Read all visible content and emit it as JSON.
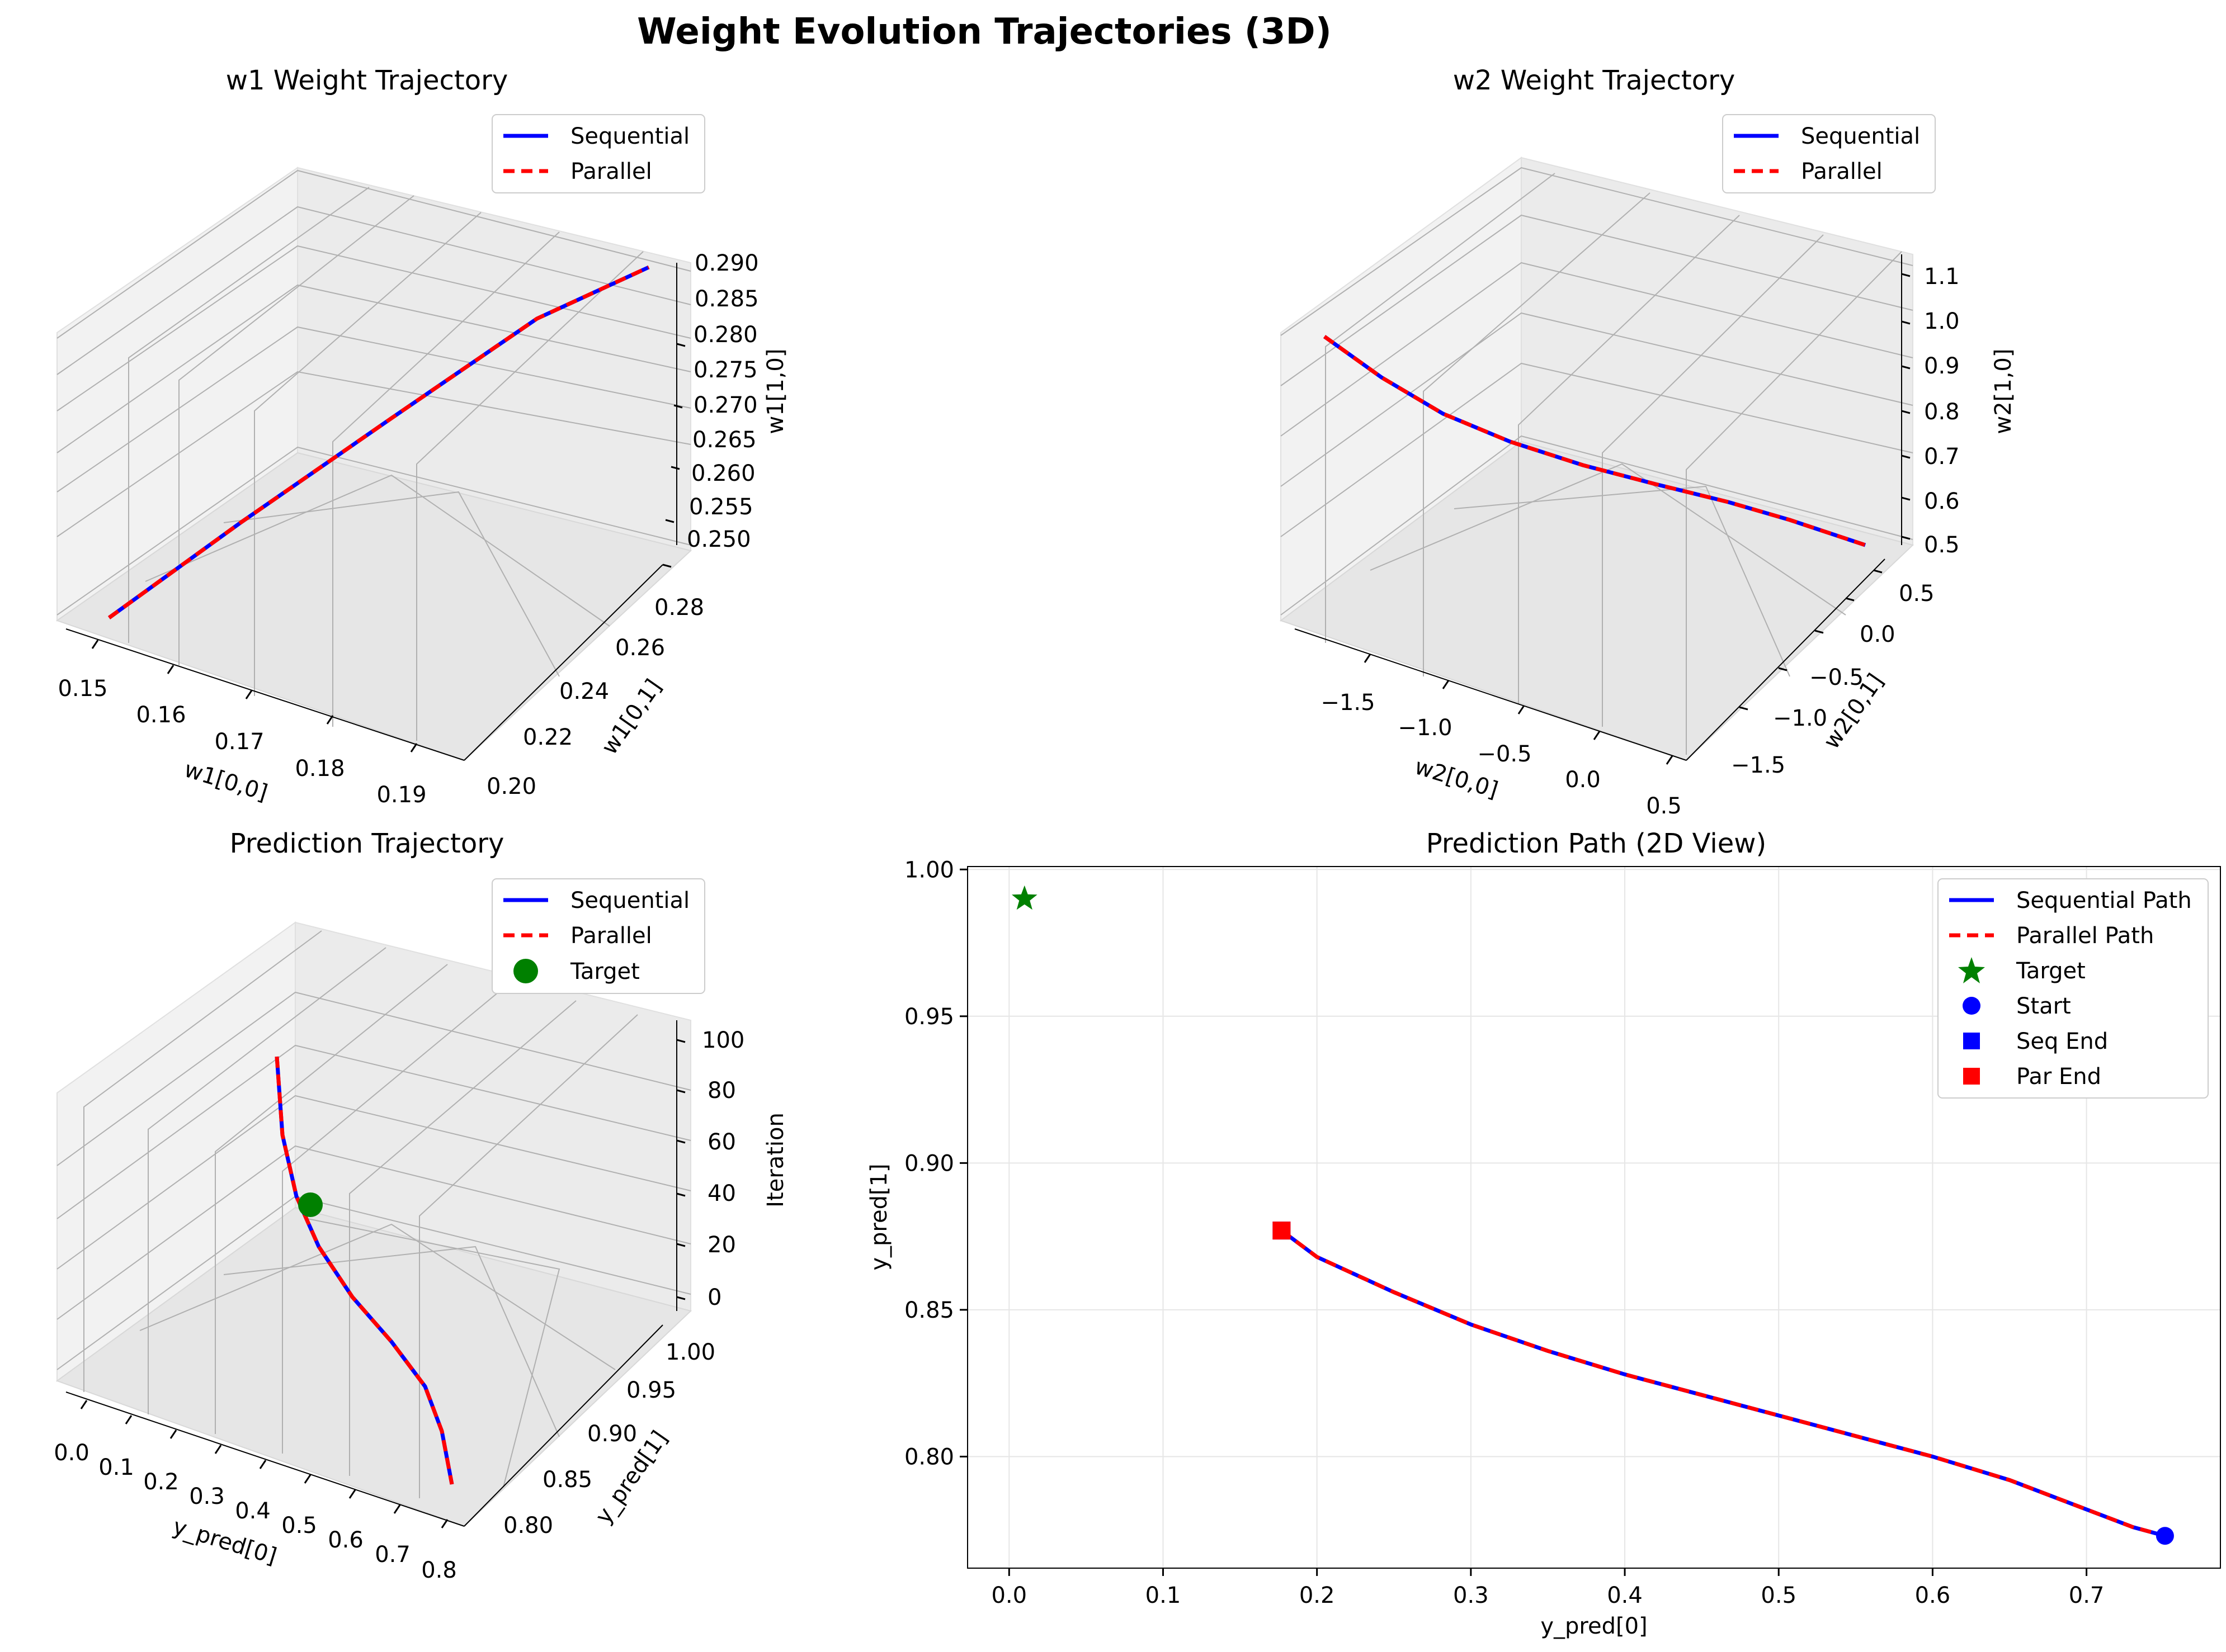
{
  "figure_title": "Weight Evolution Trajectories (3D)",
  "colors": {
    "sequential": "#0000ff",
    "parallel": "#ff0000",
    "target": "#008000",
    "grid": "#b0b0b0",
    "pane": "#f2f2f2"
  },
  "chart_data": [
    {
      "type": "line3d",
      "title": "w1 Weight Trajectory",
      "xlabel": "w1[0,0]",
      "ylabel": "w1[0,1]",
      "zlabel": "w1[1,0]",
      "xticks": [
        "0.15",
        "0.16",
        "0.17",
        "0.18",
        "0.19"
      ],
      "yticks": [
        "0.20",
        "0.22",
        "0.24",
        "0.26",
        "0.28"
      ],
      "zticks": [
        "0.250",
        "0.255",
        "0.260",
        "0.265",
        "0.270",
        "0.275",
        "0.280",
        "0.285",
        "0.290"
      ],
      "xlim": [
        0.145,
        0.195
      ],
      "ylim": [
        0.195,
        0.29
      ],
      "zlim": [
        0.248,
        0.292
      ],
      "legend": [
        "Sequential",
        "Parallel"
      ],
      "legend_loc": "upper right",
      "series": [
        {
          "name": "Sequential",
          "x": [
            0.195,
            0.18,
            0.17,
            0.16,
            0.15,
            0.145
          ],
          "y": [
            0.2,
            0.22,
            0.235,
            0.25,
            0.27,
            0.285
          ],
          "z": [
            0.25,
            0.258,
            0.266,
            0.274,
            0.283,
            0.29
          ]
        },
        {
          "name": "Parallel",
          "x": [
            0.195,
            0.18,
            0.17,
            0.16,
            0.15,
            0.145
          ],
          "y": [
            0.2,
            0.22,
            0.235,
            0.25,
            0.27,
            0.285
          ],
          "z": [
            0.25,
            0.258,
            0.266,
            0.274,
            0.283,
            0.29
          ]
        }
      ]
    },
    {
      "type": "line3d",
      "title": "w2 Weight Trajectory",
      "xlabel": "w2[0,0]",
      "ylabel": "w2[0,1]",
      "zlabel": "w2[1,0]",
      "xticks": [
        "−1.5",
        "−1.0",
        "−0.5",
        "0.0",
        "0.5"
      ],
      "yticks": [
        "−1.5",
        "−1.0",
        "−0.5",
        "0.0",
        "0.5"
      ],
      "zticks": [
        "0.5",
        "0.6",
        "0.7",
        "0.8",
        "0.9",
        "1.0",
        "1.1"
      ],
      "xlim": [
        -1.8,
        0.5
      ],
      "ylim": [
        -1.8,
        0.6
      ],
      "zlim": [
        0.5,
        1.12
      ],
      "legend": [
        "Sequential",
        "Parallel"
      ],
      "legend_loc": "upper right",
      "series": [
        {
          "name": "Sequential",
          "x": [
            -1.8,
            -1.5,
            -1.2,
            -0.9,
            -0.6,
            -0.3,
            0.0,
            0.3,
            0.45
          ],
          "y": [
            -1.8,
            -1.6,
            -1.35,
            -1.05,
            -0.7,
            -0.3,
            0.1,
            0.4,
            0.55
          ],
          "z": [
            1.07,
            0.95,
            0.86,
            0.79,
            0.73,
            0.68,
            0.63,
            0.57,
            0.52
          ]
        },
        {
          "name": "Parallel",
          "x": [
            -1.8,
            -1.5,
            -1.2,
            -0.9,
            -0.6,
            -0.3,
            0.0,
            0.3,
            0.45
          ],
          "y": [
            -1.8,
            -1.6,
            -1.35,
            -1.05,
            -0.7,
            -0.3,
            0.1,
            0.4,
            0.55
          ],
          "z": [
            1.07,
            0.95,
            0.86,
            0.79,
            0.73,
            0.68,
            0.63,
            0.57,
            0.52
          ]
        }
      ]
    },
    {
      "type": "line3d",
      "title": "Prediction Trajectory",
      "xlabel": "y_pred[0]",
      "ylabel": "y_pred[1]",
      "zlabel": "Iteration",
      "xticks": [
        "0.0",
        "0.1",
        "0.2",
        "0.3",
        "0.4",
        "0.5",
        "0.6",
        "0.7",
        "0.8"
      ],
      "yticks": [
        "0.80",
        "0.85",
        "0.90",
        "0.95",
        "1.00"
      ],
      "zticks": [
        "0",
        "20",
        "40",
        "60",
        "80",
        "100"
      ],
      "xlim": [
        -0.02,
        0.8
      ],
      "ylim": [
        0.77,
        1.0
      ],
      "zlim": [
        -5,
        105
      ],
      "legend": [
        "Sequential",
        "Parallel",
        "Target"
      ],
      "legend_loc": "upper right",
      "series": [
        {
          "name": "Sequential",
          "x": [
            0.75,
            0.65,
            0.55,
            0.45,
            0.37,
            0.3,
            0.24,
            0.2,
            0.177
          ],
          "y": [
            0.773,
            0.79,
            0.805,
            0.818,
            0.83,
            0.843,
            0.855,
            0.868,
            0.877
          ],
          "z": [
            0,
            12,
            25,
            37,
            50,
            62,
            75,
            88,
            100
          ]
        },
        {
          "name": "Parallel",
          "x": [
            0.75,
            0.65,
            0.55,
            0.45,
            0.37,
            0.3,
            0.24,
            0.2,
            0.177
          ],
          "y": [
            0.773,
            0.79,
            0.805,
            0.818,
            0.83,
            0.843,
            0.855,
            0.868,
            0.877
          ],
          "z": [
            0,
            12,
            25,
            37,
            50,
            62,
            75,
            88,
            100
          ]
        }
      ],
      "target": {
        "x": 0.01,
        "y": 0.99,
        "z": 50
      }
    },
    {
      "type": "line",
      "title": "Prediction Path (2D View)",
      "xlabel": "y_pred[0]",
      "ylabel": "y_pred[1]",
      "xticks": [
        "0.0",
        "0.1",
        "0.2",
        "0.3",
        "0.4",
        "0.5",
        "0.6",
        "0.7"
      ],
      "yticks": [
        "0.80",
        "0.85",
        "0.90",
        "0.95",
        "1.00"
      ],
      "xlim": [
        -0.027,
        0.787
      ],
      "ylim": [
        0.762,
        1.001
      ],
      "grid": true,
      "legend": [
        "Sequential Path",
        "Parallel Path",
        "Target",
        "Start",
        "Seq End",
        "Par End"
      ],
      "legend_loc": "upper right",
      "series": [
        {
          "name": "Sequential Path",
          "x": [
            0.177,
            0.2,
            0.25,
            0.3,
            0.35,
            0.4,
            0.45,
            0.5,
            0.55,
            0.6,
            0.65,
            0.7,
            0.73,
            0.751
          ],
          "y": [
            0.877,
            0.868,
            0.856,
            0.845,
            0.836,
            0.828,
            0.821,
            0.814,
            0.807,
            0.8,
            0.792,
            0.782,
            0.776,
            0.773
          ]
        },
        {
          "name": "Parallel Path",
          "x": [
            0.177,
            0.2,
            0.25,
            0.3,
            0.35,
            0.4,
            0.45,
            0.5,
            0.55,
            0.6,
            0.65,
            0.7,
            0.73,
            0.751
          ],
          "y": [
            0.877,
            0.868,
            0.856,
            0.845,
            0.836,
            0.828,
            0.821,
            0.814,
            0.807,
            0.8,
            0.792,
            0.782,
            0.776,
            0.773
          ]
        }
      ],
      "markers": {
        "target": {
          "x": 0.01,
          "y": 0.99
        },
        "start": {
          "x": 0.751,
          "y": 0.773
        },
        "seq_end": {
          "x": 0.177,
          "y": 0.877
        },
        "par_end": {
          "x": 0.177,
          "y": 0.877
        }
      }
    }
  ]
}
